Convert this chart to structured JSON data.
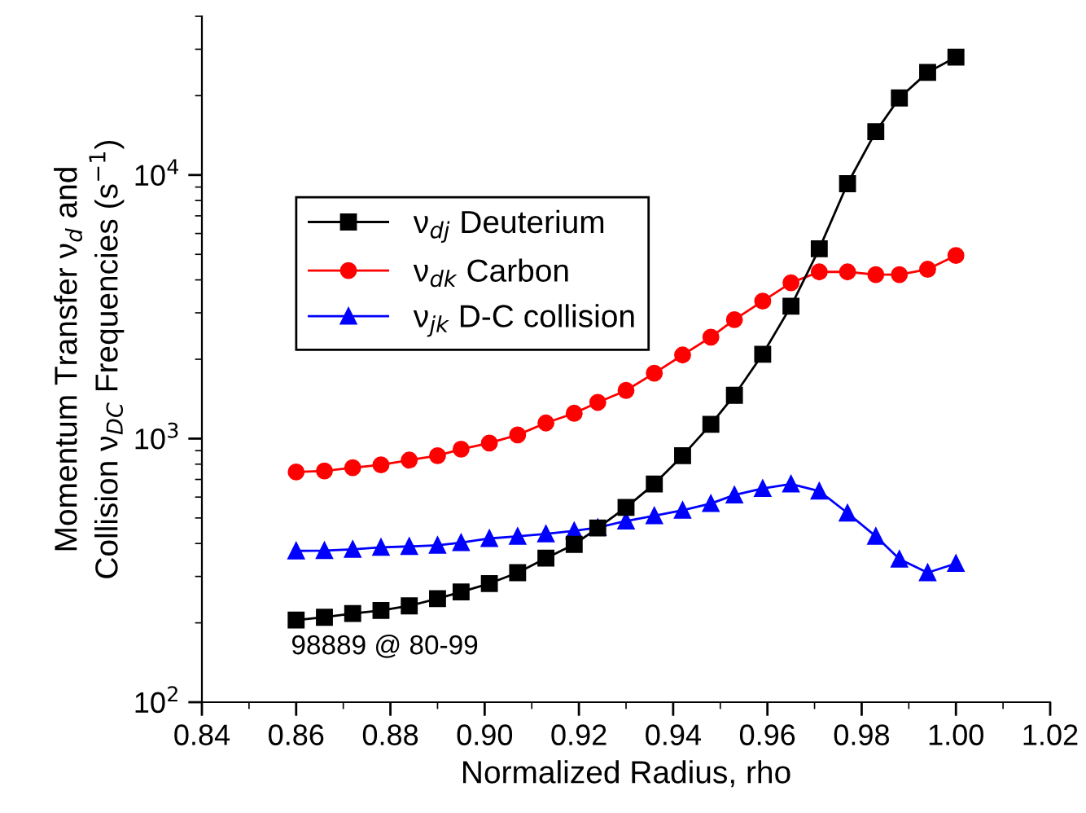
{
  "chart_data": {
    "type": "line",
    "xlabel": "Normalized Radius, rho",
    "ylabel": "Momentum Transfer ν$_{d}$ and\nCollision ν$_{DC}$ Frequencies (s$^{−1}$)",
    "x": [
      0.86,
      0.866,
      0.872,
      0.878,
      0.884,
      0.89,
      0.895,
      0.901,
      0.907,
      0.913,
      0.919,
      0.924,
      0.93,
      0.936,
      0.942,
      0.948,
      0.953,
      0.959,
      0.965,
      0.971,
      0.977,
      0.983,
      0.988,
      0.994,
      1.0
    ],
    "series": [
      {
        "name": "ν$_{dj}$ Deuterium",
        "color": "#000000",
        "marker": "square",
        "values": [
          205,
          210,
          217,
          223,
          232,
          247,
          262,
          282,
          310,
          352,
          397,
          458,
          548,
          673,
          861,
          1133,
          1460,
          2090,
          3180,
          5250,
          9270,
          14600,
          19600,
          24500,
          28000
        ]
      },
      {
        "name": "ν$_{dk}$ Carbon",
        "color": "#ff0000",
        "marker": "circle",
        "values": [
          747,
          754,
          776,
          795,
          829,
          861,
          912,
          962,
          1033,
          1146,
          1248,
          1372,
          1523,
          1770,
          2076,
          2427,
          2826,
          3322,
          3900,
          4290,
          4290,
          4190,
          4190,
          4390,
          4950
        ]
      },
      {
        "name": "ν$_{jk}$ D-C collision",
        "color": "#0000ff",
        "marker": "triangle",
        "values": [
          375,
          376,
          380,
          387,
          390,
          394,
          403,
          418,
          426,
          435,
          447,
          460,
          487,
          510,
          535,
          567,
          611,
          647,
          673,
          632,
          522,
          426,
          349,
          310,
          336
        ]
      }
    ],
    "log": "y",
    "xlim": [
      0.84,
      1.02
    ],
    "xticks": [
      {
        "value": 0.84,
        "label": "0.84"
      },
      {
        "value": 0.86,
        "label": "0.86"
      },
      {
        "value": 0.88,
        "label": "0.88"
      },
      {
        "value": 0.9,
        "label": "0.90"
      },
      {
        "value": 0.92,
        "label": "0.92"
      },
      {
        "value": 0.94,
        "label": "0.94"
      },
      {
        "value": 0.96,
        "label": "0.96"
      },
      {
        "value": 0.98,
        "label": "0.98"
      },
      {
        "value": 1.0,
        "label": "1.00"
      },
      {
        "value": 1.02,
        "label": "1.02"
      }
    ],
    "ylim": [
      100,
      40000
    ],
    "yticks": [
      {
        "value": 100,
        "label": "10$^{2}$"
      },
      {
        "value": 1000,
        "label": "10$^{3}$"
      },
      {
        "value": 10000,
        "label": "10$^{4}$"
      }
    ],
    "legend": "top left",
    "grid": false,
    "line_style": "solid",
    "annotations": [
      "98889 @ 80-99"
    ]
  }
}
